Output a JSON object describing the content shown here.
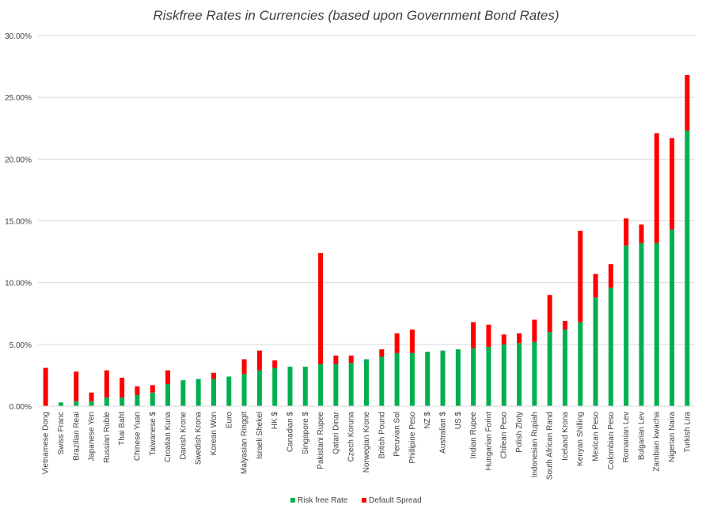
{
  "chart_data": {
    "type": "bar",
    "stacked": true,
    "title": "Riskfree Rates in Currencies (based upon Government Bond Rates)",
    "xlabel": "",
    "ylabel": "",
    "ylim": [
      0,
      0.3
    ],
    "yticks": [
      0,
      0.05,
      0.1,
      0.15,
      0.2,
      0.25,
      0.3
    ],
    "ytick_labels": [
      "0.00%",
      "5.00%",
      "10.00%",
      "15.00%",
      "20.00%",
      "25.00%",
      "30.00%"
    ],
    "grid": true,
    "legend_position": "bottom",
    "categories": [
      "Vietnamese Dong",
      "Swiss Franc",
      "Brazilian Reai",
      "Japanese Yen",
      "Russian Ruble",
      "Thai Baht",
      "Chinese Yuan",
      "Taiwanese $",
      "Croatian Kuna",
      "Danish Krone",
      "Swedish Krona",
      "Korean Won",
      "Euro",
      "Malyasian Ringgit",
      "Israeli Shekel",
      "HK $",
      "Canadian $",
      "Singapore $",
      "Pakistani Rupee",
      "Qatari Dinar",
      "Czech Koruna",
      "Norwegian Krone",
      "British Pound",
      "Peruvian Sol",
      "Phillipine Peso",
      "NZ $",
      "Australian $",
      "US $",
      "Indian Rupee",
      "Hungarian Forint",
      "Chilean Peso",
      "Polish Zloty",
      "Indonesian Rupiah",
      "South African Rand",
      "Iceland Krona",
      "Kenyan Shilling",
      "Mexican Peso",
      "Colombian Peso",
      "Romanian Lev",
      "Bulgarian Lev",
      "Zambian kwacha",
      "Nigerian Naira",
      "Turkish Lira"
    ],
    "series": [
      {
        "name": "Risk free Rate",
        "color": "#00B050",
        "values": [
          0.0,
          0.003,
          0.004,
          0.004,
          0.007,
          0.007,
          0.009,
          0.011,
          0.018,
          0.021,
          0.022,
          0.022,
          0.024,
          0.026,
          0.029,
          0.031,
          0.032,
          0.032,
          0.034,
          0.034,
          0.035,
          0.038,
          0.04,
          0.043,
          0.043,
          0.044,
          0.045,
          0.046,
          0.047,
          0.048,
          0.05,
          0.051,
          0.052,
          0.06,
          0.062,
          0.068,
          0.088,
          0.096,
          0.13,
          0.132,
          0.132,
          0.143,
          0.223
        ]
      },
      {
        "name": "Default Spread",
        "color": "#FF0000",
        "values": [
          0.031,
          0.0,
          0.024,
          0.007,
          0.022,
          0.016,
          0.007,
          0.006,
          0.011,
          0.0,
          0.0,
          0.005,
          0.0,
          0.012,
          0.016,
          0.006,
          0.0,
          0.0,
          0.09,
          0.007,
          0.006,
          0.0,
          0.006,
          0.016,
          0.019,
          0.0,
          0.0,
          0.0,
          0.021,
          0.018,
          0.008,
          0.008,
          0.018,
          0.03,
          0.007,
          0.074,
          0.019,
          0.019,
          0.022,
          0.015,
          0.089,
          0.074,
          0.045
        ]
      }
    ]
  }
}
